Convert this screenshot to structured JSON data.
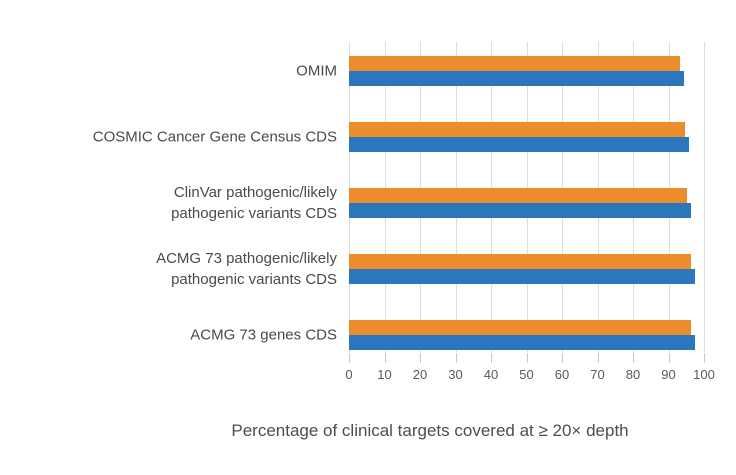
{
  "figure": {
    "x_axis_title": "Percentage of clinical targets covered at ≥ 20× depth"
  },
  "colors": {
    "orange_bar": "#ED8C2D",
    "blue_bar": "#2B77BD",
    "gridline": "#DCDCDC",
    "tick_mark": "#C9C9C9",
    "label_text": "#4A4A4A",
    "tick_text": "#595959"
  },
  "chart_data": {
    "type": "bar",
    "orientation": "horizontal",
    "title": "",
    "xlabel": "Percentage of clinical targets covered at ≥ 20× depth",
    "ylabel": "",
    "xlim": [
      0,
      100
    ],
    "x_ticks": [
      0,
      10,
      20,
      30,
      40,
      50,
      60,
      70,
      80,
      90,
      100
    ],
    "grid": true,
    "legend_position": "none",
    "categories": [
      "OMIM",
      "COSMIC Cancer Gene Census CDS",
      "ClinVar pathogenic/likely pathogenic variants CDS",
      "ACMG 73 pathogenic/likely pathogenic variants CDS",
      "ACMG 73 genes CDS"
    ],
    "category_label_lines": [
      [
        "OMIM"
      ],
      [
        "COSMIC Cancer Gene Census CDS"
      ],
      [
        "ClinVar pathogenic/likely",
        "pathogenic variants CDS"
      ],
      [
        "ACMG 73 pathogenic/likely",
        "pathogenic variants CDS"
      ],
      [
        "ACMG 73 genes CDS"
      ]
    ],
    "series": [
      {
        "name": "orange series (top bar of each pair)",
        "color": "#ED8C2D",
        "values": [
          93.3,
          94.7,
          95.2,
          96.2,
          96.4
        ]
      },
      {
        "name": "blue series (bottom bar of each pair)",
        "color": "#2B77BD",
        "values": [
          94.4,
          95.8,
          96.4,
          97.5,
          97.5
        ]
      }
    ]
  }
}
